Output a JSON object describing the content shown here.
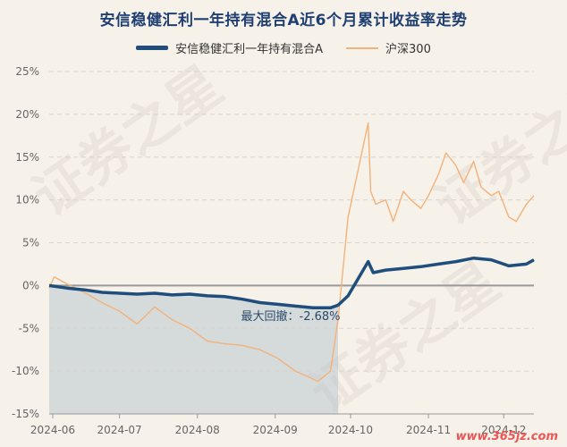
{
  "title": "安信稳健汇利一年持有混合A近6个月累计收益率走势",
  "watermark_text": "证券之星",
  "site_label": "www.365jz.com",
  "colors": {
    "fund": "#1f4e7d",
    "index": "#f3b27a",
    "drawdown_fill": "#b9c6d0",
    "grid": "#d9d4cc",
    "axis_text": "#666666",
    "title": "#1f3f73"
  },
  "chart_data": {
    "type": "line",
    "ylim": [
      -15,
      25
    ],
    "yticks": [
      25,
      20,
      15,
      10,
      5,
      0,
      -5,
      -10,
      -15
    ],
    "ytick_labels": [
      "25%",
      "20%",
      "15%",
      "10%",
      "5%",
      "0%",
      "-5%",
      "-10%",
      "-15%"
    ],
    "x_range": [
      "2024-06-03",
      "2024-12-13"
    ],
    "xticks": [
      "2024-06-01",
      "2024-07-01",
      "2024-08-01",
      "2024-09-01",
      "2024-10-01",
      "2024-11-01",
      "2024-12-01"
    ],
    "xtick_labels": [
      "2024-06",
      "2024-07",
      "2024-08",
      "2024-09",
      "2024-10",
      "2024-11",
      "2024-12"
    ],
    "grid": true,
    "legend_position": "top",
    "series": [
      {
        "name": "安信稳健汇利一年持有混合A",
        "x": [
          "2024-06-03",
          "2024-06-10",
          "2024-06-17",
          "2024-06-24",
          "2024-07-01",
          "2024-07-08",
          "2024-07-15",
          "2024-07-22",
          "2024-07-29",
          "2024-08-05",
          "2024-08-12",
          "2024-08-19",
          "2024-08-26",
          "2024-09-02",
          "2024-09-09",
          "2024-09-16",
          "2024-09-23",
          "2024-09-26",
          "2024-09-30",
          "2024-10-08",
          "2024-10-10",
          "2024-10-15",
          "2024-10-22",
          "2024-10-29",
          "2024-11-05",
          "2024-11-12",
          "2024-11-19",
          "2024-11-26",
          "2024-12-03",
          "2024-12-10",
          "2024-12-13"
        ],
        "y": [
          0.0,
          -0.3,
          -0.5,
          -0.8,
          -0.9,
          -1.0,
          -0.9,
          -1.1,
          -1.0,
          -1.2,
          -1.3,
          -1.6,
          -2.0,
          -2.2,
          -2.4,
          -2.6,
          -2.6,
          -2.3,
          -1.2,
          2.8,
          1.5,
          1.8,
          2.0,
          2.2,
          2.5,
          2.8,
          3.2,
          3.0,
          2.3,
          2.5,
          3.0
        ]
      },
      {
        "name": "沪深300",
        "x": [
          "2024-06-03",
          "2024-06-05",
          "2024-06-10",
          "2024-06-17",
          "2024-06-24",
          "2024-07-01",
          "2024-07-08",
          "2024-07-15",
          "2024-07-22",
          "2024-07-29",
          "2024-08-05",
          "2024-08-12",
          "2024-08-19",
          "2024-08-26",
          "2024-09-02",
          "2024-09-09",
          "2024-09-13",
          "2024-09-18",
          "2024-09-23",
          "2024-09-26",
          "2024-09-30",
          "2024-10-08",
          "2024-10-09",
          "2024-10-11",
          "2024-10-15",
          "2024-10-18",
          "2024-10-22",
          "2024-10-25",
          "2024-10-29",
          "2024-11-01",
          "2024-11-05",
          "2024-11-08",
          "2024-11-12",
          "2024-11-15",
          "2024-11-19",
          "2024-11-22",
          "2024-11-26",
          "2024-11-29",
          "2024-12-03",
          "2024-12-06",
          "2024-12-10",
          "2024-12-13"
        ],
        "y": [
          -0.3,
          1.0,
          0.2,
          -0.8,
          -2.0,
          -3.0,
          -4.5,
          -2.5,
          -4.0,
          -5.0,
          -6.5,
          -6.8,
          -7.0,
          -7.5,
          -8.5,
          -10.0,
          -10.5,
          -11.2,
          -10.0,
          -4.0,
          8.0,
          19.0,
          11.0,
          9.5,
          10.0,
          7.5,
          11.0,
          10.0,
          9.0,
          10.5,
          13.0,
          15.5,
          14.0,
          12.0,
          14.5,
          11.5,
          10.5,
          11.0,
          8.0,
          7.5,
          9.5,
          10.5
        ]
      }
    ],
    "annotations": [
      {
        "text": "最大回撤：-2.68%"
      }
    ]
  }
}
